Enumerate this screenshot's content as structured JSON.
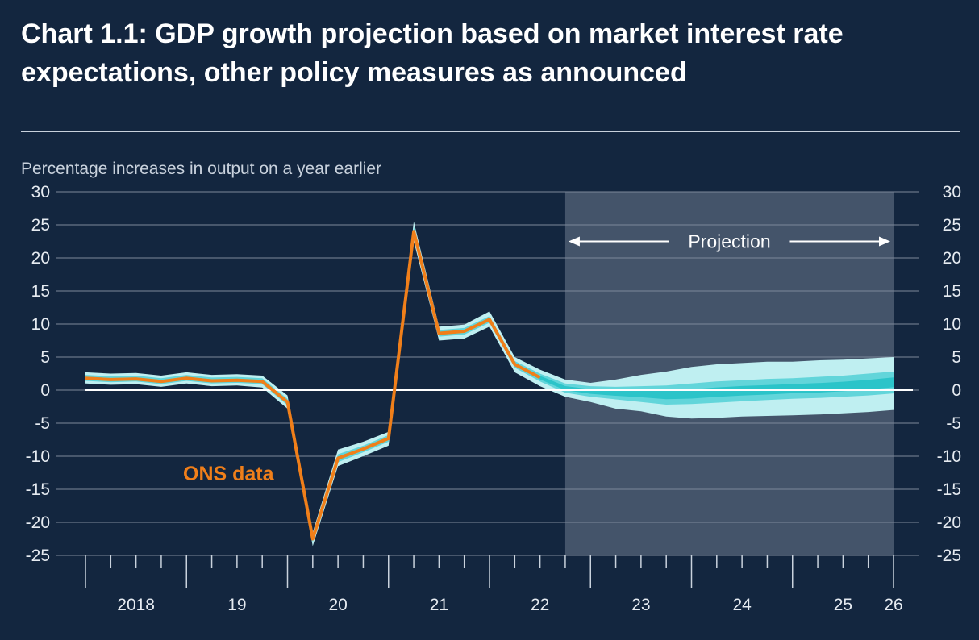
{
  "chart_data": {
    "type": "line",
    "title": "Chart 1.1: GDP growth projection based on market interest rate expectations, other policy measures as announced",
    "ylabel": "Percentage increases in output on a year earlier",
    "ylim": [
      -25,
      30
    ],
    "yticks": [
      30,
      25,
      20,
      15,
      10,
      5,
      0,
      -5,
      -10,
      -15,
      -20,
      -25
    ],
    "x_tick_labels": [
      {
        "label": "2018",
        "x": 2018.5
      },
      {
        "label": "19",
        "x": 2019.5
      },
      {
        "label": "20",
        "x": 2020.5
      },
      {
        "label": "21",
        "x": 2021.5
      },
      {
        "label": "22",
        "x": 2022.5
      },
      {
        "label": "23",
        "x": 2023.5
      },
      {
        "label": "24",
        "x": 2024.5
      },
      {
        "label": "25",
        "x": 2025.5
      },
      {
        "label": "26",
        "x": 2026.0
      }
    ],
    "xlim": [
      2018.0,
      2026.0
    ],
    "projection": {
      "label": "Projection",
      "start": 2022.75,
      "end": 2026.0
    },
    "ons_data": {
      "label": "ONS data",
      "color": "#f07f1a",
      "x": [
        2018.0,
        2018.25,
        2018.5,
        2018.75,
        2019.0,
        2019.25,
        2019.5,
        2019.75,
        2020.0,
        2020.25,
        2020.5,
        2020.75,
        2021.0,
        2021.25,
        2021.5,
        2021.75,
        2022.0,
        2022.25,
        2022.5
      ],
      "y": [
        1.8,
        1.6,
        1.7,
        1.3,
        1.8,
        1.4,
        1.5,
        1.3,
        -1.8,
        -22.5,
        -10.3,
        -8.9,
        -7.3,
        24.0,
        8.6,
        8.9,
        10.7,
        3.9,
        1.9
      ]
    },
    "fan_chart": {
      "x": [
        2018.0,
        2018.25,
        2018.5,
        2018.75,
        2019.0,
        2019.25,
        2019.5,
        2019.75,
        2020.0,
        2020.25,
        2020.5,
        2020.75,
        2021.0,
        2021.25,
        2021.5,
        2021.75,
        2022.0,
        2022.25,
        2022.5,
        2022.75,
        2023.0,
        2023.25,
        2023.5,
        2023.75,
        2024.0,
        2024.25,
        2024.5,
        2024.75,
        2025.0,
        2025.25,
        2025.5,
        2025.75,
        2026.0
      ],
      "outer_upper": [
        2.7,
        2.5,
        2.6,
        2.2,
        2.7,
        2.3,
        2.4,
        2.2,
        -0.8,
        -21.5,
        -9.0,
        -7.8,
        -6.3,
        25.5,
        9.6,
        9.9,
        11.9,
        5.0,
        3.1,
        1.6,
        1.1,
        1.6,
        2.3,
        2.8,
        3.5,
        3.9,
        4.1,
        4.3,
        4.3,
        4.5,
        4.6,
        4.8,
        5.0
      ],
      "inner_upper": [
        2.3,
        2.1,
        2.2,
        1.8,
        2.3,
        1.9,
        2.0,
        1.8,
        -1.3,
        -22.0,
        -9.7,
        -8.4,
        -6.8,
        24.7,
        9.1,
        9.4,
        11.2,
        4.4,
        2.5,
        1.0,
        0.6,
        0.5,
        0.6,
        0.7,
        1.0,
        1.3,
        1.5,
        1.7,
        1.8,
        2.0,
        2.2,
        2.5,
        2.8
      ],
      "central": [
        1.8,
        1.6,
        1.7,
        1.3,
        1.8,
        1.4,
        1.5,
        1.3,
        -1.8,
        -22.5,
        -10.3,
        -8.9,
        -7.3,
        24.0,
        8.6,
        8.9,
        10.7,
        3.9,
        1.9,
        0.3,
        -0.2,
        -0.4,
        -0.5,
        -0.7,
        -0.6,
        -0.3,
        -0.1,
        0.0,
        0.2,
        0.3,
        0.5,
        0.8,
        1.2
      ],
      "inner_lower": [
        1.4,
        1.2,
        1.3,
        0.9,
        1.4,
        1.0,
        1.1,
        0.9,
        -2.3,
        -23.0,
        -10.9,
        -9.4,
        -7.8,
        23.3,
        8.1,
        8.4,
        10.2,
        3.4,
        1.3,
        -0.4,
        -1.0,
        -1.4,
        -1.8,
        -2.2,
        -2.1,
        -1.9,
        -1.7,
        -1.5,
        -1.3,
        -1.2,
        -1.0,
        -0.8,
        -0.5
      ],
      "outer_lower": [
        1.0,
        0.8,
        0.9,
        0.5,
        1.0,
        0.6,
        0.7,
        0.4,
        -2.8,
        -23.6,
        -11.5,
        -10.0,
        -8.4,
        22.5,
        7.5,
        7.8,
        9.6,
        2.7,
        0.6,
        -1.0,
        -1.8,
        -2.8,
        -3.2,
        -4.0,
        -4.3,
        -4.2,
        -4.0,
        -3.9,
        -3.8,
        -3.7,
        -3.5,
        -3.3,
        -3.0
      ],
      "colors": {
        "outer": "#bfeff1",
        "inner": "#62d5da",
        "core": "#2bc4c9"
      }
    },
    "colors": {
      "background": "#13263f",
      "projection_shade": "#44546a",
      "gridline": "#7c8899",
      "zero_line": "#ffffff",
      "ons_line": "#f07f1a",
      "annotation_ons": "#f07f1a"
    }
  }
}
